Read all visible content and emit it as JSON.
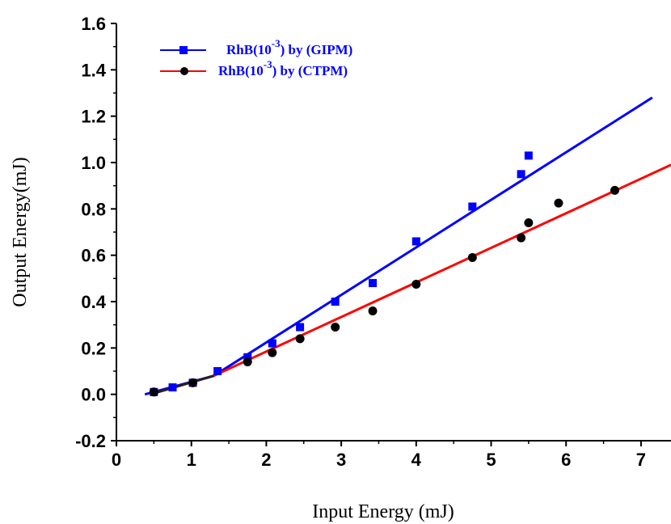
{
  "chart_data": {
    "type": "scatter",
    "title": "",
    "xlabel": "Input Energy (mJ)",
    "ylabel": "Output Energy(mJ)",
    "xlim": [
      0,
      7.4
    ],
    "ylim": [
      -0.2,
      1.6
    ],
    "xticks": [
      0,
      1,
      2,
      3,
      4,
      5,
      6,
      7
    ],
    "xtick_labels": [
      "0",
      "1",
      "2",
      "3",
      "4",
      "5",
      "6",
      "7"
    ],
    "yticks": [
      -0.2,
      0.0,
      0.2,
      0.4,
      0.6,
      0.8,
      1.0,
      1.2,
      1.4,
      1.6
    ],
    "ytick_labels": [
      "-0.2",
      "0.0",
      "0.2",
      "0.4",
      "0.6",
      "0.8",
      "1.0",
      "1.2",
      "1.4",
      "1.6"
    ],
    "grid": false,
    "legend_position": "top-left",
    "series": [
      {
        "name_main": "RhB(10",
        "name_sup": "-3",
        "name_tail": ") by (GIPM)",
        "color": "#0000ff",
        "marker": "square",
        "x": [
          0.5,
          0.75,
          1.02,
          1.35,
          1.75,
          2.08,
          2.45,
          2.92,
          3.42,
          4.0,
          4.75,
          5.4,
          5.5
        ],
        "y": [
          0.01,
          0.03,
          0.05,
          0.1,
          0.16,
          0.22,
          0.29,
          0.4,
          0.48,
          0.66,
          0.81,
          0.95,
          1.03
        ],
        "fit": [
          [
            0.38,
            0.0
          ],
          [
            1.3,
            0.08
          ],
          [
            7.15,
            1.28
          ]
        ]
      },
      {
        "name_main": "RhB(10",
        "name_sup": "-3",
        "name_tail": ") by (CTPM)",
        "color": "#000000",
        "line_color": "#ff0000",
        "marker": "circle",
        "x": [
          0.5,
          1.02,
          1.75,
          2.08,
          2.45,
          2.92,
          3.42,
          4.0,
          4.75,
          5.4,
          5.5,
          5.9,
          6.65
        ],
        "y": [
          0.01,
          0.05,
          0.14,
          0.18,
          0.24,
          0.29,
          0.36,
          0.475,
          0.59,
          0.675,
          0.74,
          0.825,
          0.88
        ],
        "fit": [
          [
            0.45,
            0.0
          ],
          [
            1.3,
            0.08
          ],
          [
            7.4,
            0.99
          ]
        ]
      }
    ]
  }
}
